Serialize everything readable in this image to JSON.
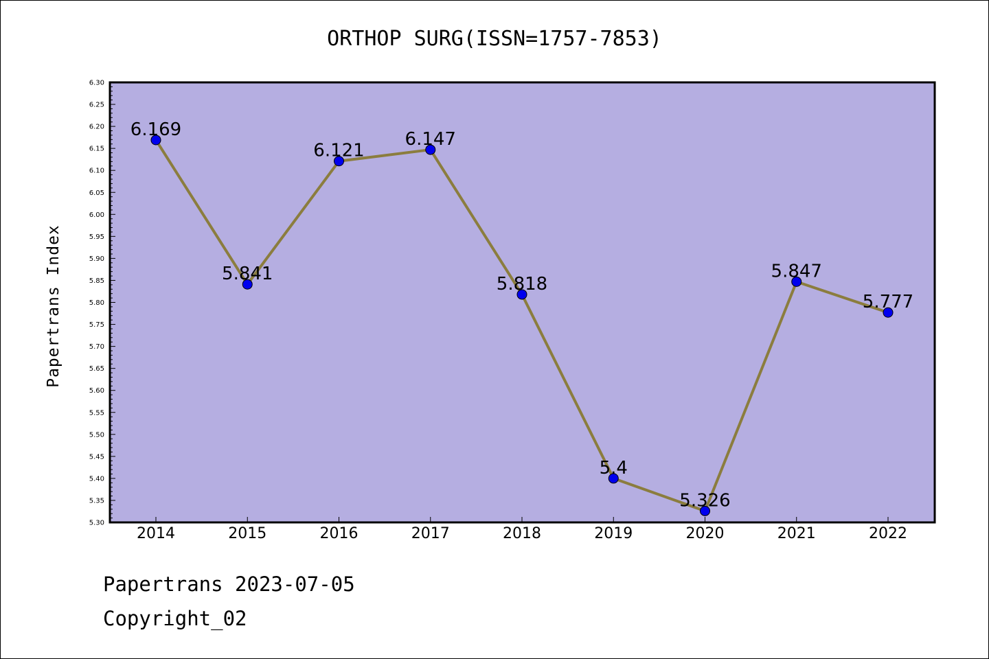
{
  "chart_data": {
    "type": "line",
    "title": "ORTHOP SURG(ISSN=1757-7853)",
    "ylabel": "Papertrans Index",
    "xlabel": "",
    "categories": [
      "2014",
      "2015",
      "2016",
      "2017",
      "2018",
      "2019",
      "2020",
      "2021",
      "2022"
    ],
    "values": [
      6.169,
      5.841,
      6.121,
      6.147,
      5.818,
      5.4,
      5.326,
      5.847,
      5.777
    ],
    "data_labels": [
      "6.169",
      "5.841",
      "6.121",
      "6.147",
      "5.818",
      "5.4",
      "5.326",
      "5.847",
      "5.777"
    ],
    "ylim": [
      5.3,
      6.3
    ],
    "yticks": [
      "5.30",
      "5.35",
      "5.40",
      "5.45",
      "5.50",
      "5.55",
      "5.60",
      "5.65",
      "5.70",
      "5.75",
      "5.80",
      "5.85",
      "5.90",
      "5.95",
      "6.00",
      "6.05",
      "6.10",
      "6.15",
      "6.20",
      "6.25",
      "6.30"
    ],
    "grid": false,
    "legend": "none",
    "colors": {
      "plot_background": "#b5aee1",
      "line": "#8b7d3e",
      "marker": "#0000ee",
      "axis": "#000000"
    }
  },
  "footer": {
    "date_line": "Papertrans 2023-07-05",
    "copyright": "Copyright_02"
  }
}
